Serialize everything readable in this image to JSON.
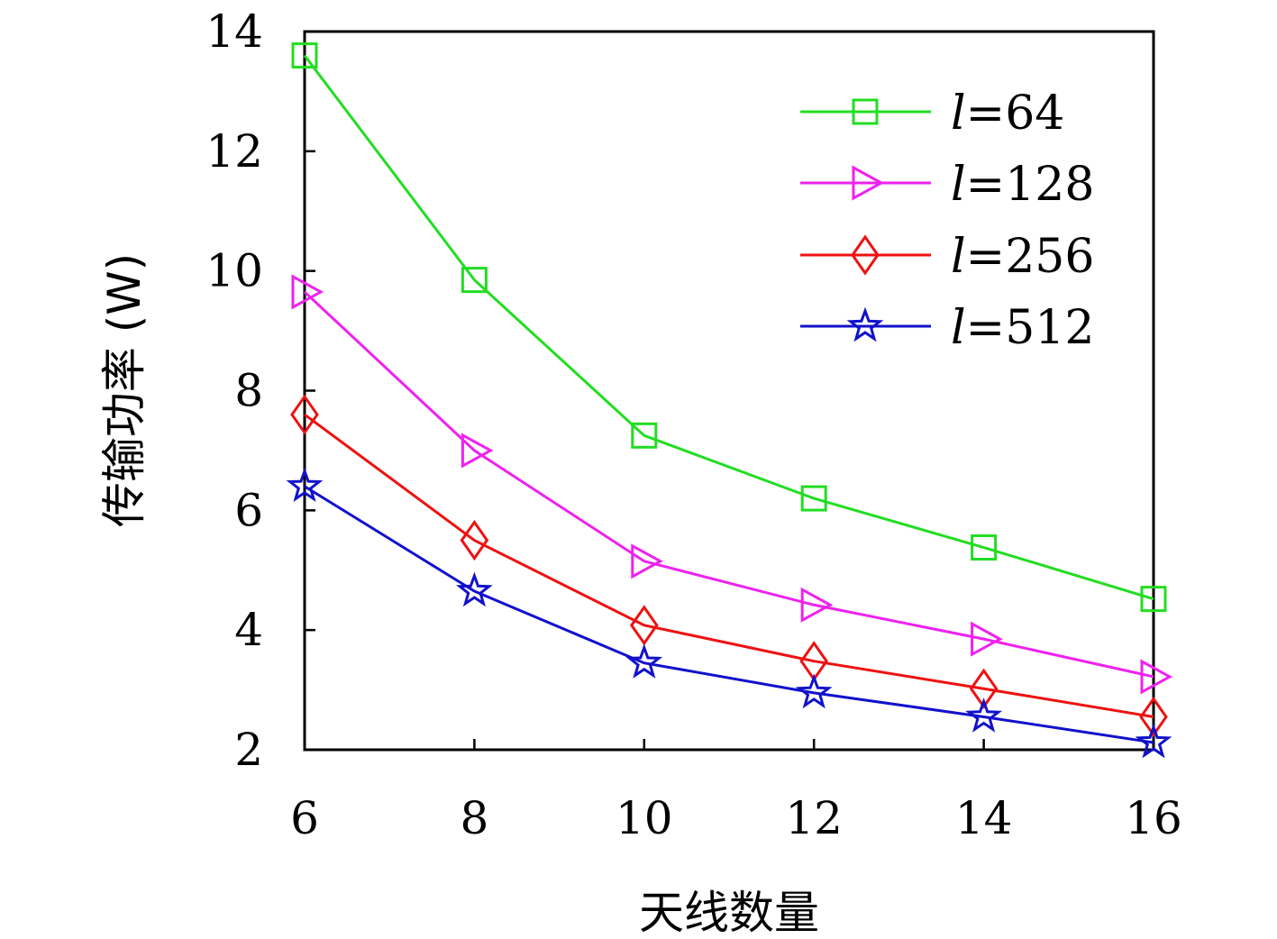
{
  "chart_data": {
    "type": "line",
    "title": "",
    "xlabel": "天线数量",
    "ylabel": "传输功率 (W)",
    "x": [
      6,
      8,
      10,
      12,
      14,
      16
    ],
    "xticks": [
      "6",
      "8",
      "10",
      "12",
      "14",
      "16"
    ],
    "yticks": [
      "2",
      "4",
      "6",
      "8",
      "10",
      "12",
      "14"
    ],
    "xlim": [
      6,
      16
    ],
    "ylim": [
      2,
      14
    ],
    "grid": false,
    "legend_position": "top-right",
    "series": [
      {
        "name": "l=64",
        "legend_var": "l",
        "legend_value": "=64",
        "color": "#22dd22",
        "marker": "square",
        "values": [
          13.6,
          9.85,
          7.25,
          6.2,
          5.38,
          4.52
        ]
      },
      {
        "name": "l=128",
        "legend_var": "l",
        "legend_value": "=128",
        "color": "#ee22ee",
        "marker": "triangle-right",
        "values": [
          9.65,
          7.0,
          5.15,
          4.42,
          3.85,
          3.22
        ]
      },
      {
        "name": "l=256",
        "legend_var": "l",
        "legend_value": "=256",
        "color": "#ee1111",
        "marker": "diamond",
        "values": [
          7.6,
          5.5,
          4.08,
          3.48,
          3.02,
          2.55
        ]
      },
      {
        "name": "l=512",
        "legend_var": "l",
        "legend_value": "=512",
        "color": "#1111cc",
        "marker": "star",
        "values": [
          6.4,
          4.65,
          3.45,
          2.95,
          2.55,
          2.12
        ]
      }
    ]
  }
}
